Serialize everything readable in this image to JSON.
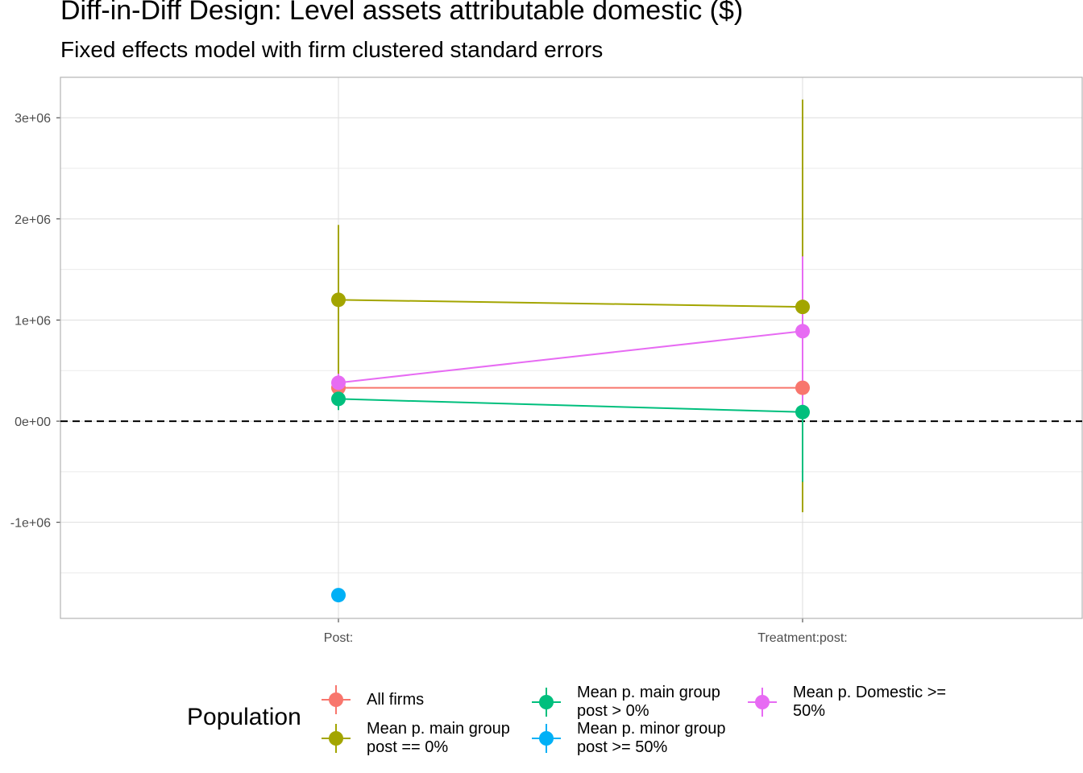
{
  "chart_data": {
    "type": "scatter",
    "title": "Diff-in-Diff Design: Level assets attributable domestic  ($)",
    "subtitle": "Fixed effects model with firm clustered standard errors",
    "categories": [
      "Post:",
      "Treatment:post:"
    ],
    "y_ticks": [
      -1000000,
      0,
      1000000,
      2000000,
      3000000
    ],
    "y_tick_labels": [
      "-1e+06",
      "0e+00",
      "1e+06",
      "2e+06",
      "3e+06"
    ],
    "ylim": [
      -1950000,
      3400000
    ],
    "grid": true,
    "reference_line": {
      "y": 0,
      "style": "dashed"
    },
    "legend": {
      "title": "Population",
      "position": "bottom"
    },
    "series": [
      {
        "name": "All firms",
        "color": "#F8766D",
        "values": [
          330000,
          330000
        ],
        "lower": [
          330000,
          330000
        ],
        "upper": [
          330000,
          330000
        ]
      },
      {
        "name": "Mean p. main group post == 0%",
        "label": "Mean p. main group\npost == 0%",
        "color": "#A3A500",
        "values": [
          1200000,
          1130000
        ],
        "lower": [
          470000,
          -900000
        ],
        "upper": [
          1940000,
          3180000
        ]
      },
      {
        "name": "Mean p. main group post > 0%",
        "label": "Mean p. main group\npost > 0%",
        "color": "#00BF7D",
        "values": [
          220000,
          90000
        ],
        "lower": [
          110000,
          -600000
        ],
        "upper": [
          330000,
          780000
        ]
      },
      {
        "name": "Mean p. minor group post >= 50%",
        "label": "Mean p. minor group\npost >= 50%",
        "color": "#00B0F6",
        "values": [
          -1720000,
          null
        ],
        "lower": [
          -1720000,
          null
        ],
        "upper": [
          -1720000,
          null
        ]
      },
      {
        "name": "Mean p. Domestic >= 50%",
        "label": "Mean p. Domestic >=\n50%",
        "color": "#E76BF3",
        "values": [
          380000,
          890000
        ],
        "lower": [
          290000,
          160000
        ],
        "upper": [
          470000,
          1630000
        ]
      }
    ]
  }
}
